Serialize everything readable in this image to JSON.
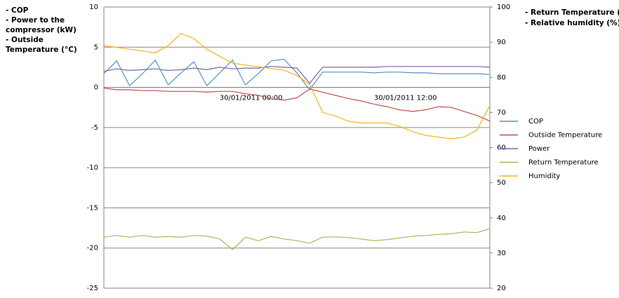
{
  "chart_data": {
    "type": "line",
    "y_label_lines": [
      "- COP",
      "- Power to the",
      "compressor (kW)",
      "- Outside",
      "Temperature (°C)"
    ],
    "y2_label_lines": [
      "- Return Temperature (°C)",
      "- Relative humidity (%)"
    ],
    "categories": [
      null,
      null,
      null,
      null,
      null,
      null,
      null,
      null,
      null,
      null,
      null,
      "30/01/2011 00:00",
      null,
      null,
      null,
      null,
      null,
      null,
      null,
      null,
      null,
      null,
      null,
      "30/01/2011 12:00",
      null,
      null,
      null,
      null,
      null,
      null,
      null
    ],
    "ylim": [
      -25,
      10
    ],
    "yticks": [
      -25,
      -20,
      -15,
      -10,
      -5,
      0,
      5,
      10
    ],
    "y2lim": [
      20,
      100
    ],
    "y2ticks": [
      20,
      30,
      40,
      50,
      60,
      70,
      80,
      90,
      100
    ],
    "grid": true,
    "series": [
      {
        "name": "COP",
        "color": "#4f94c4",
        "values": [
          1.7,
          3.3,
          0.2,
          1.7,
          3.4,
          0.3,
          1.8,
          3.2,
          0.2,
          1.8,
          3.4,
          0.3,
          1.7,
          3.3,
          3.5,
          1.8,
          -0.3,
          1.9,
          1.9,
          1.9,
          1.9,
          1.8,
          1.9,
          1.9,
          1.8,
          1.8,
          1.7,
          1.7,
          1.7,
          1.7,
          1.6
        ]
      },
      {
        "name": "Outside Temperature",
        "color": "#c0504d",
        "values": [
          -0.1,
          -0.3,
          -0.3,
          -0.4,
          -0.4,
          -0.5,
          -0.5,
          -0.5,
          -0.6,
          -0.5,
          -0.5,
          -0.8,
          -1.0,
          -1.4,
          -1.6,
          -1.3,
          -0.2,
          -0.6,
          -1.0,
          -1.4,
          -1.7,
          -2.1,
          -2.4,
          -2.8,
          -3.0,
          -2.8,
          -2.4,
          -2.5,
          -3.0,
          -3.5,
          -4.2
        ]
      },
      {
        "name": "Power",
        "color": "#8064a2",
        "values": [
          2.0,
          2.3,
          2.1,
          2.2,
          2.3,
          2.1,
          2.2,
          2.4,
          2.2,
          2.5,
          2.3,
          2.4,
          2.4,
          2.6,
          2.5,
          2.4,
          0.5,
          2.5,
          2.5,
          2.5,
          2.5,
          2.5,
          2.6,
          2.6,
          2.6,
          2.6,
          2.6,
          2.6,
          2.6,
          2.6,
          2.5
        ]
      },
      {
        "name": "Return Temperature",
        "color": "#9bbb59",
        "axis": "y2",
        "values": [
          34.5,
          35,
          34.5,
          35,
          34.5,
          34.7,
          34.5,
          35,
          34.8,
          34,
          31,
          34.5,
          33.5,
          34.7,
          34,
          33.5,
          32.8,
          34.5,
          34.6,
          34.4,
          34,
          33.5,
          33.8,
          34.3,
          34.8,
          35,
          35.3,
          35.5,
          36,
          35.8,
          37
        ]
      },
      {
        "name": "Humidity",
        "color": "#f5b41d",
        "axis": "y2",
        "values": [
          89,
          88.5,
          88,
          87.5,
          87,
          89,
          92.5,
          91,
          88,
          86,
          84,
          83.5,
          83,
          82.5,
          82,
          80.5,
          78,
          70,
          69,
          67.5,
          67,
          67,
          67,
          66,
          64.5,
          63.5,
          63,
          62.5,
          63,
          65,
          72
        ]
      }
    ]
  }
}
